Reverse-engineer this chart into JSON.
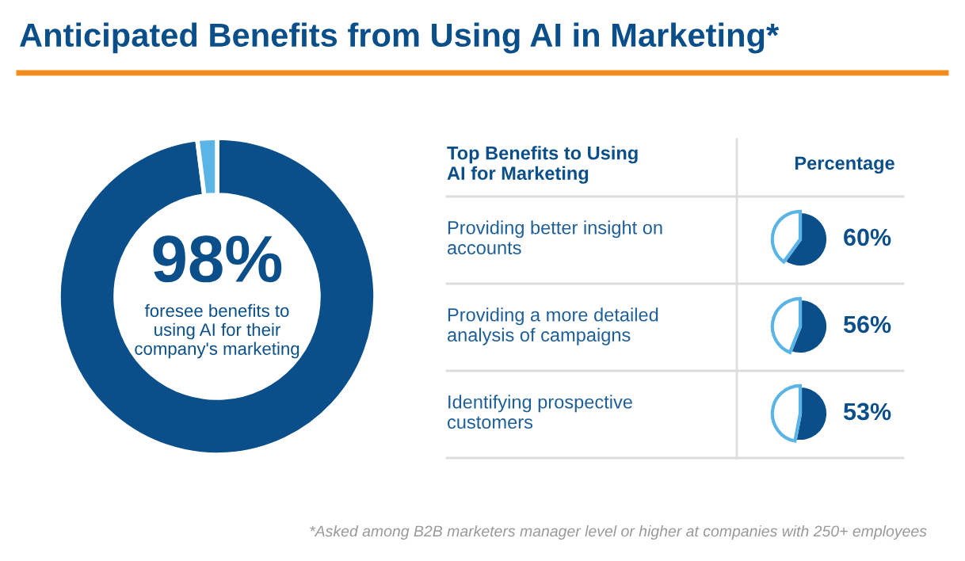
{
  "chart_data": [
    {
      "type": "donut",
      "title": "Anticipated Benefits from Using AI in Marketing*",
      "categories": [
        null,
        null
      ],
      "values": [
        98,
        2
      ],
      "colors": [
        "#0b4f8a",
        "#5ab4e5"
      ],
      "value_labels": [
        "98%",
        null
      ],
      "annotations": [
        "foresee benefits to\nusing AI for their\ncompany's marketing",
        "*Asked among B2B marketers manager level or higher at companies with 250+ employees"
      ]
    },
    {
      "type": "other",
      "annotations": [
        "Top Benefits to Using\nAI for Marketing",
        "Percentage"
      ]
    },
    {
      "type": "pie",
      "title": "Providing better insight on\naccounts",
      "categories": [
        null,
        null
      ],
      "values": [
        60,
        40
      ],
      "colors": [
        "#0b4f8a",
        "#ffffff"
      ],
      "value_labels": [
        "60%",
        null
      ]
    },
    {
      "type": "pie",
      "title": "Providing a more detailed\nanalysis of campaigns",
      "categories": [
        null,
        null
      ],
      "values": [
        56,
        44
      ],
      "colors": [
        "#0b4f8a",
        "#ffffff"
      ],
      "value_labels": [
        "56%",
        null
      ]
    },
    {
      "type": "pie",
      "title": "Identifying prospective\ncustomers",
      "categories": [
        null,
        null
      ],
      "values": [
        53,
        47
      ],
      "colors": [
        "#0b4f8a",
        "#ffffff"
      ],
      "value_labels": [
        "53%",
        null
      ]
    }
  ]
}
